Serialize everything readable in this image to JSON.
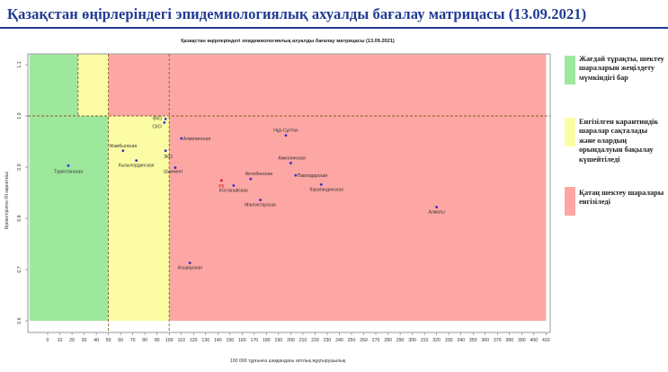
{
  "page_title": "Қазақстан өңірлеріндегі эпидемиологиялық ахуалды бағалау матрицасы  (13.09.2021)",
  "legend": [
    {
      "color": "#9ee89e",
      "text": "Жағдай тұрақты, шектеу шараларын жеңілдету мүмкіндігі бар"
    },
    {
      "color": "#fcfca4",
      "text": "Енгізілген карантиндік шаралар сақталады және олардың орындалуын бақылау күшейтіледі"
    },
    {
      "color": "#fca7a3",
      "text": "Қатаң шектеу шаралары енгізіледі"
    }
  ],
  "chart_data": {
    "type": "scatter",
    "title": "Қазақстан өңірлеріндегі эпидемиологиялық ахуалды бағалау матрицасы (13.09.2021)",
    "xlabel": "100 000 тұрғынға шаққандағы аптлық жұқтырушылық",
    "ylabel": "Бірлестірілген Rt көрсеткіші",
    "xlim": [
      0,
      410
    ],
    "ylim": [
      0.6,
      1.12
    ],
    "xticks": [
      0,
      10,
      20,
      30,
      40,
      50,
      60,
      70,
      80,
      90,
      100,
      110,
      120,
      130,
      140,
      150,
      160,
      170,
      180,
      190,
      200,
      210,
      220,
      230,
      240,
      250,
      260,
      270,
      280,
      290,
      300,
      310,
      320,
      330,
      340,
      350,
      360,
      370,
      380,
      390,
      400,
      410
    ],
    "yticks": [
      0.6,
      0.7,
      0.8,
      0.9,
      1.0,
      1.1
    ],
    "ytick_labels": [
      "0.6",
      "0.7",
      "0.8",
      "0.9",
      "1.0",
      "1.1"
    ],
    "zones": [
      {
        "name": "green",
        "color": "#9ee89e",
        "x": [
          -15,
          50
        ],
        "y": [
          0.6,
          1.0
        ]
      },
      {
        "name": "green-upper",
        "color": "#9ee89e",
        "x": [
          -15,
          25
        ],
        "y": [
          1.0,
          1.12
        ]
      },
      {
        "name": "yellow",
        "color": "#fcfca4",
        "x": [
          50,
          100
        ],
        "y": [
          0.6,
          1.0
        ]
      },
      {
        "name": "yellow-upper",
        "color": "#fcfca4",
        "x": [
          25,
          50
        ],
        "y": [
          1.0,
          1.12
        ]
      },
      {
        "name": "red",
        "color": "#fca7a3",
        "x": [
          100,
          410
        ],
        "y": [
          0.6,
          1.12
        ]
      },
      {
        "name": "red-upper",
        "color": "#fca7a3",
        "x": [
          50,
          100
        ],
        "y": [
          1.0,
          1.12
        ]
      }
    ],
    "thresholds": {
      "x": [
        25,
        50,
        100
      ],
      "y": 1.0
    },
    "points": [
      {
        "label": "Түркістанская",
        "x": 17,
        "y": 0.903,
        "color": "#3a2dc8"
      },
      {
        "label": "Жамбылская",
        "x": 62,
        "y": 0.932,
        "color": "#3a2dc8"
      },
      {
        "label": "Кызылординская",
        "x": 73,
        "y": 0.913,
        "color": "#3a2dc8"
      },
      {
        "label": "ВКО",
        "x": 97,
        "y": 0.994,
        "color": "#3a2dc8"
      },
      {
        "label": "СКО",
        "x": 96,
        "y": 0.987,
        "color": "#3a2dc8"
      },
      {
        "label": "ЗКО",
        "x": 97,
        "y": 0.932,
        "color": "#3a2dc8"
      },
      {
        "label": "Алматинская",
        "x": 110,
        "y": 0.956,
        "color": "#3a2dc8"
      },
      {
        "label": "Шымкент",
        "x": 105,
        "y": 0.899,
        "color": "#3a2dc8"
      },
      {
        "label": "Нұр-Сұлтан",
        "x": 196,
        "y": 0.962,
        "color": "#3a2dc8"
      },
      {
        "label": "Акмолинская",
        "x": 200,
        "y": 0.908,
        "color": "#3a2dc8"
      },
      {
        "label": "Павлодарская",
        "x": 204,
        "y": 0.884,
        "color": "#3a2dc8"
      },
      {
        "label": "Актюбинская",
        "x": 167,
        "y": 0.877,
        "color": "#3a2dc8"
      },
      {
        "label": "Костанайская",
        "x": 153,
        "y": 0.864,
        "color": "#3a2dc8"
      },
      {
        "label": "РК",
        "x": 143,
        "y": 0.874,
        "color": "#d42020"
      },
      {
        "label": "Карагандинская",
        "x": 225,
        "y": 0.866,
        "color": "#3a2dc8"
      },
      {
        "label": "Мангистауская",
        "x": 175,
        "y": 0.836,
        "color": "#3a2dc8"
      },
      {
        "label": "Алматы",
        "x": 320,
        "y": 0.822,
        "color": "#3a2dc8"
      },
      {
        "label": "Атырауская",
        "x": 117,
        "y": 0.713,
        "color": "#3a2dc8"
      }
    ]
  }
}
